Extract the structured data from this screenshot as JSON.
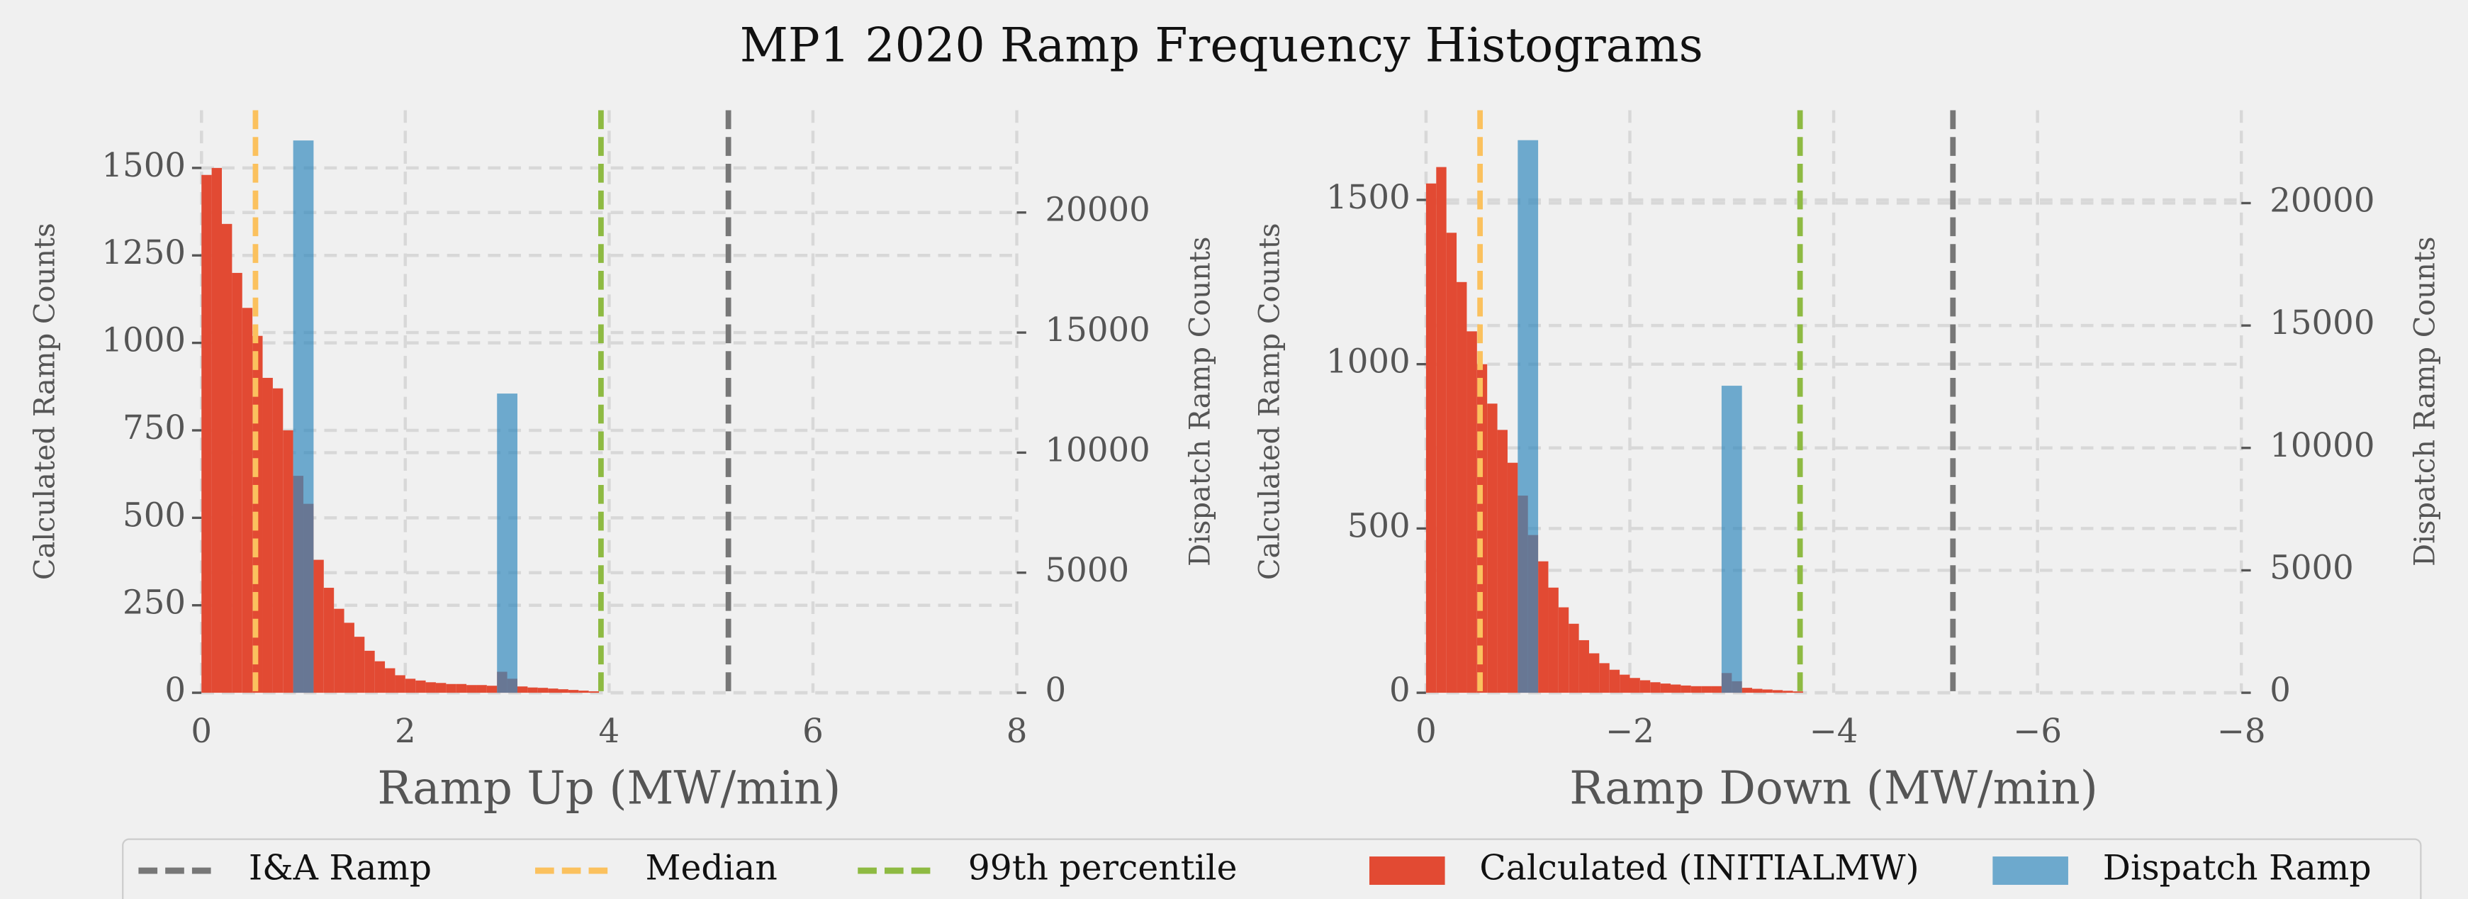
{
  "title": "MP1 2020 Ramp Frequency Histograms",
  "chart_data": [
    {
      "type": "histogram",
      "xlabel": "Ramp Up (MW/min)",
      "ylabel": "Calculated Ramp Counts",
      "y2label": "Dispatch Ramp Counts",
      "xlim": [
        0,
        8
      ],
      "xticks": [
        0,
        2,
        4,
        6,
        8
      ],
      "ylim": [
        0,
        1665
      ],
      "yticks": [
        0,
        250,
        500,
        750,
        1000,
        1250,
        1500
      ],
      "y2lim": [
        0,
        24260
      ],
      "y2ticks": [
        0,
        5000,
        10000,
        15000,
        20000
      ],
      "grid": true,
      "series": [
        {
          "name": "Calculated (INITIALMW)",
          "color": "#e24a33",
          "bins": [
            0,
            0.1,
            0.2,
            0.3,
            0.4,
            0.5,
            0.6,
            0.7,
            0.8,
            0.9,
            1.0,
            1.1,
            1.2,
            1.3,
            1.4,
            1.5,
            1.6,
            1.7,
            1.8,
            1.9,
            2.0,
            2.1,
            2.2,
            2.3,
            2.4,
            2.5,
            2.6,
            2.7,
            2.8,
            2.9,
            3.0,
            3.1,
            3.2,
            3.3,
            3.4,
            3.5,
            3.6,
            3.7,
            3.8,
            3.9
          ],
          "values": [
            1480,
            1500,
            1340,
            1200,
            1100,
            1020,
            900,
            870,
            750,
            620,
            540,
            380,
            300,
            240,
            200,
            160,
            120,
            90,
            70,
            50,
            40,
            35,
            30,
            28,
            25,
            25,
            22,
            22,
            20,
            60,
            40,
            18,
            15,
            14,
            12,
            10,
            8,
            6,
            4
          ]
        },
        {
          "name": "Dispatch Ramp",
          "color": "#348abd",
          "axis": "y2",
          "bins": [
            0.9,
            1.1,
            2.9,
            3.1
          ],
          "values": [
            23000,
            0,
            12460
          ]
        }
      ],
      "lines": [
        {
          "name": "I&A Ramp",
          "x": 5.17,
          "color": "#777777"
        },
        {
          "name": "Median",
          "x": 0.53,
          "color": "#fbc15e"
        },
        {
          "name": "99th percentile",
          "x": 3.92,
          "color": "#8eba42"
        }
      ]
    },
    {
      "type": "histogram",
      "xlabel": "Ramp Down (MW/min)",
      "ylabel": "Calculated Ramp Counts",
      "y2label": "Dispatch Ramp Counts",
      "xlim": [
        0,
        -8
      ],
      "xticks": [
        0,
        {
          "value": -2,
          "label": "−2"
        },
        {
          "value": -4,
          "label": "−4"
        },
        {
          "value": -6,
          "label": "−6"
        },
        {
          "value": -8,
          "label": "−8"
        }
      ],
      "ylim": [
        0,
        1773
      ],
      "yticks": [
        0,
        500,
        1000,
        1500
      ],
      "y2lim": [
        0,
        23794
      ],
      "y2ticks": [
        0,
        5000,
        10000,
        15000,
        20000
      ],
      "grid": true,
      "series": [
        {
          "name": "Calculated (INITIALMW)",
          "color": "#e24a33",
          "bins": [
            0,
            -0.1,
            -0.2,
            -0.3,
            -0.4,
            -0.5,
            -0.6,
            -0.7,
            -0.8,
            -0.9,
            -1.0,
            -1.1,
            -1.2,
            -1.3,
            -1.4,
            -1.5,
            -1.6,
            -1.7,
            -1.8,
            -1.9,
            -2.0,
            -2.1,
            -2.2,
            -2.3,
            -2.4,
            -2.5,
            -2.6,
            -2.7,
            -2.8,
            -2.9,
            -3.0,
            -3.1,
            -3.2,
            -3.3,
            -3.4,
            -3.5,
            -3.6,
            -3.7
          ],
          "values": [
            1550,
            1600,
            1400,
            1250,
            1100,
            1000,
            880,
            800,
            700,
            600,
            480,
            400,
            320,
            260,
            210,
            160,
            120,
            90,
            70,
            55,
            45,
            38,
            32,
            28,
            25,
            22,
            20,
            20,
            20,
            60,
            35,
            15,
            12,
            10,
            8,
            6,
            4
          ]
        },
        {
          "name": "Dispatch Ramp",
          "color": "#348abd",
          "axis": "y2",
          "bins": [
            -0.9,
            -1.1,
            -2.9,
            -3.1
          ],
          "values": [
            22570,
            0,
            12540
          ]
        }
      ],
      "lines": [
        {
          "name": "I&A Ramp",
          "x": -5.17,
          "color": "#777777"
        },
        {
          "name": "Median",
          "x": -0.53,
          "color": "#fbc15e"
        },
        {
          "name": "99th percentile",
          "x": -3.67,
          "color": "#8eba42"
        }
      ]
    }
  ]
}
